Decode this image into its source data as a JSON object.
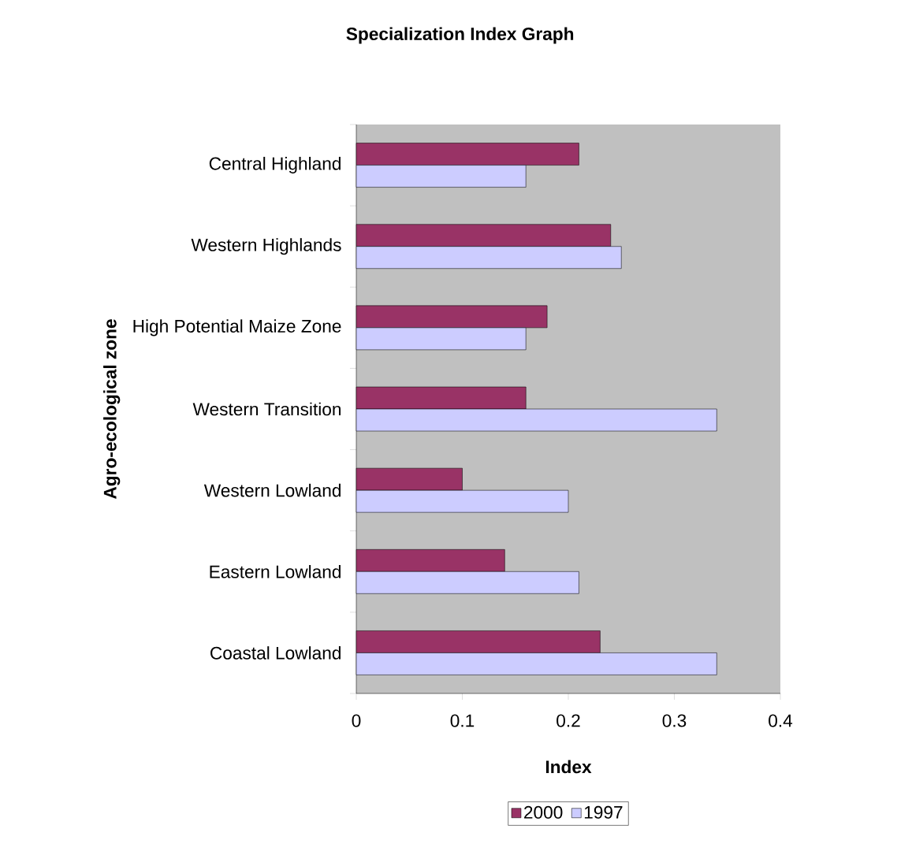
{
  "chart_data": {
    "type": "bar",
    "orientation": "horizontal",
    "title": "Specialization Index Graph",
    "xlabel": "Index",
    "ylabel": "Agro-ecological zone",
    "categories": [
      "Central Highland",
      "Western Highlands",
      "High Potential Maize Zone",
      "Western Transition",
      "Western Lowland",
      "Eastern Lowland",
      "Coastal Lowland"
    ],
    "series": [
      {
        "name": "2000",
        "color": "#993366",
        "values": [
          0.21,
          0.24,
          0.18,
          0.16,
          0.1,
          0.14,
          0.23
        ]
      },
      {
        "name": "1997",
        "color": "#ccccff",
        "values": [
          0.16,
          0.25,
          0.16,
          0.34,
          0.2,
          0.21,
          0.34
        ]
      }
    ],
    "xlim": [
      0,
      0.4
    ],
    "xticks": [
      0,
      0.1,
      0.2,
      0.3,
      0.4
    ],
    "grid": false,
    "legend": "bottom"
  }
}
